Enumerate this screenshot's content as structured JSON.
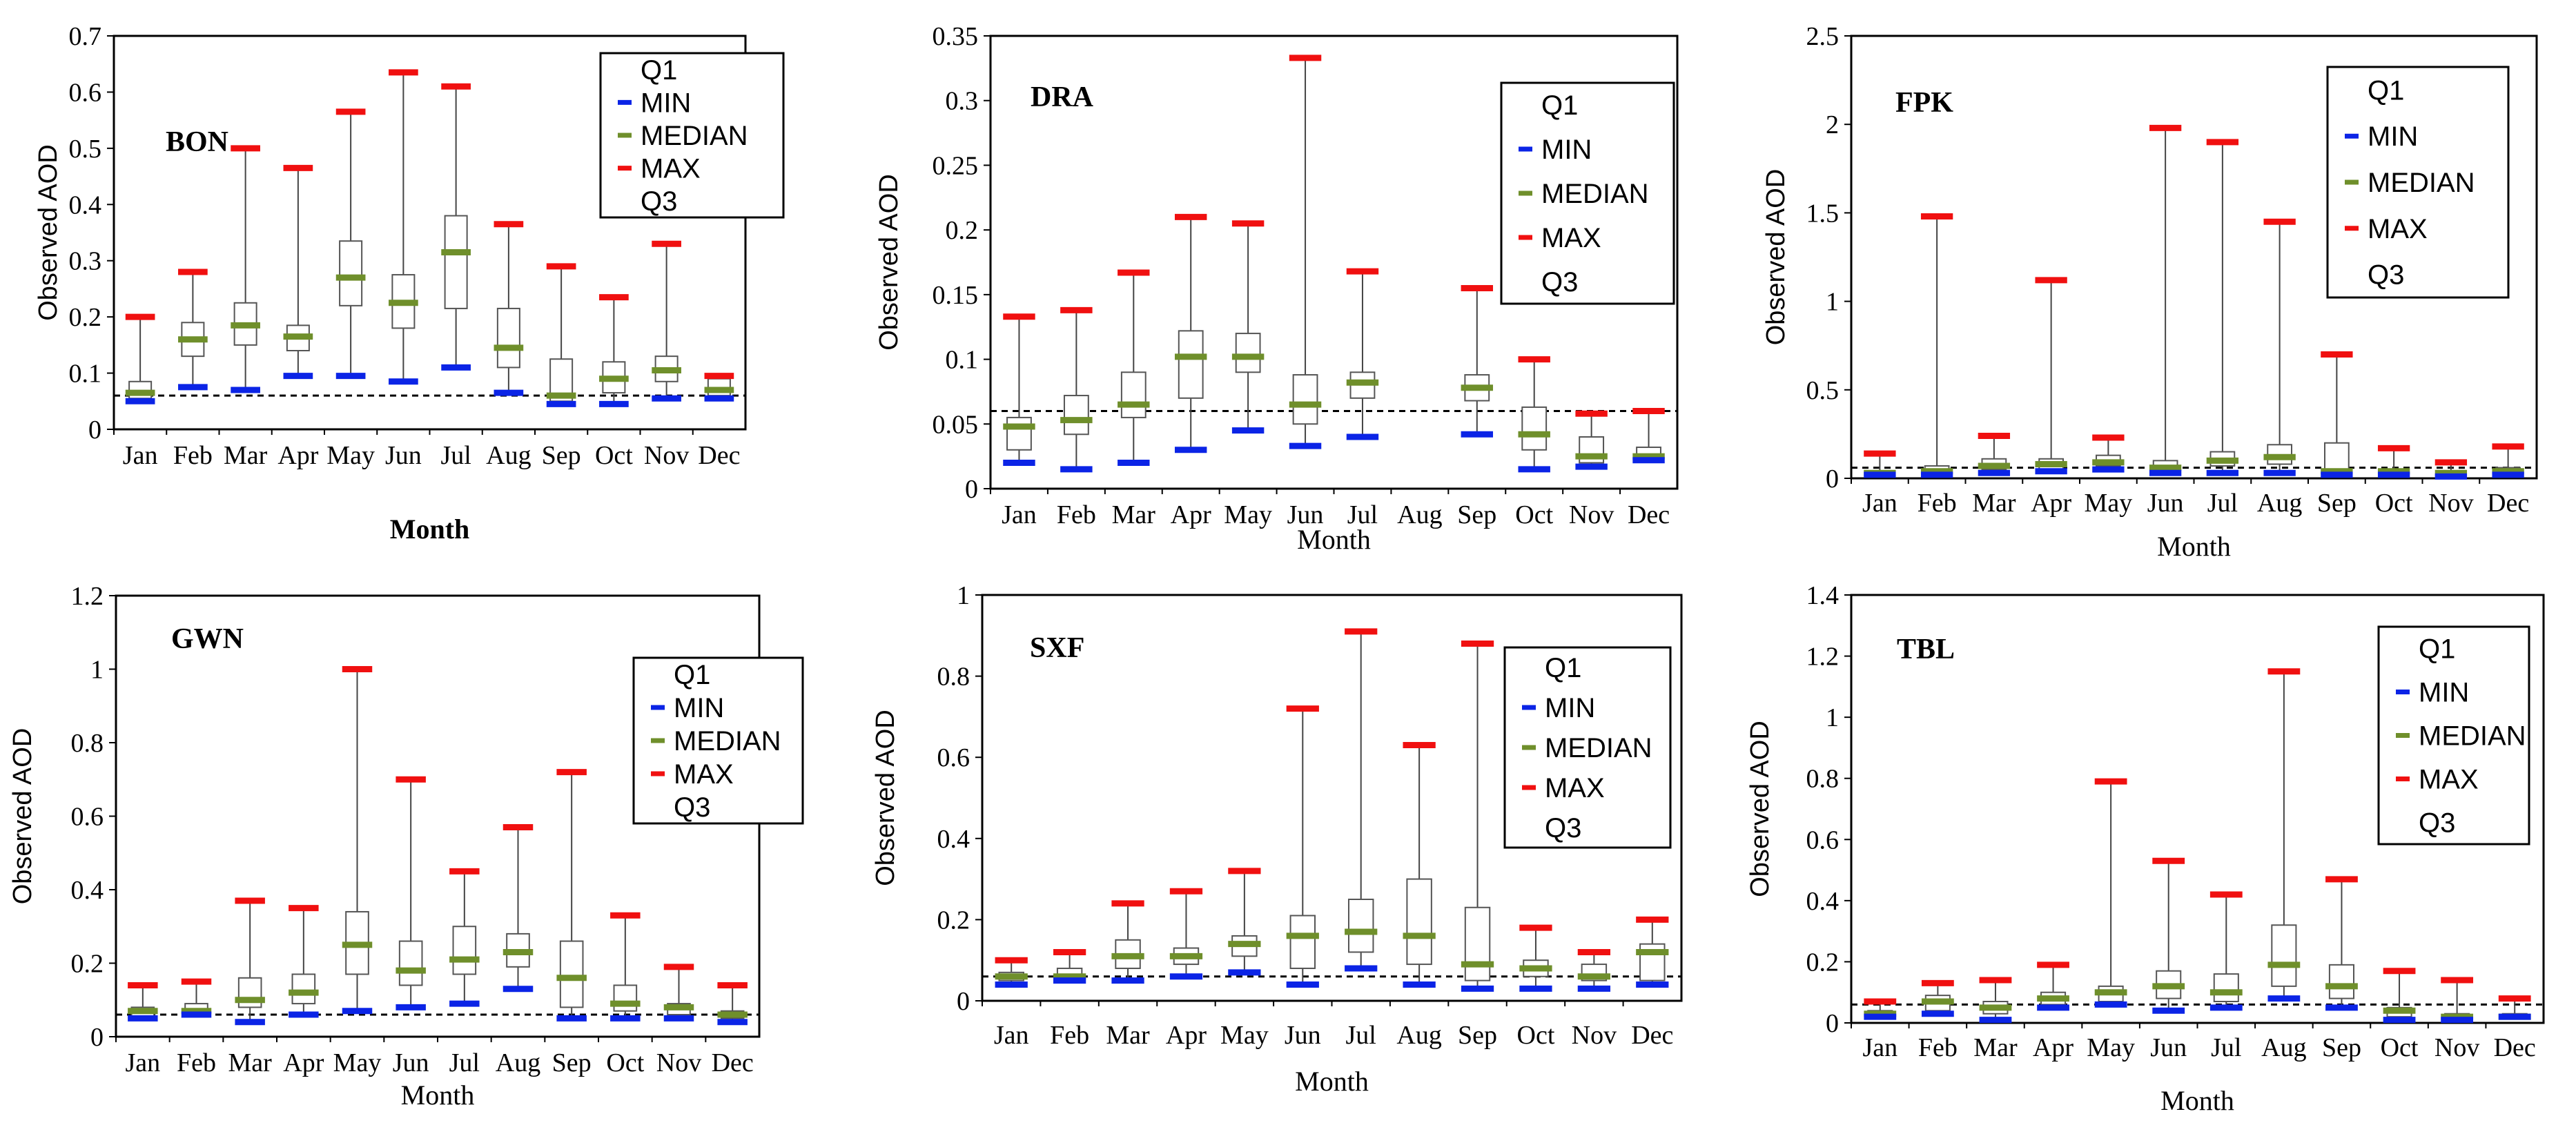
{
  "colors": {
    "min": "#0b24e6",
    "median": "#6f8f2b",
    "max": "#f01010",
    "box": "#000000"
  },
  "chart_data": [
    {
      "type": "boxplot",
      "title": "BON",
      "xlabel": "Month",
      "ylabel": "Observed AOD",
      "ylim": [
        0,
        0.7
      ],
      "yticks": [
        0,
        0.1,
        0.2,
        0.3,
        0.4,
        0.5,
        0.6,
        0.7
      ],
      "tick_labels": [
        "0",
        "0.1",
        "0.2",
        "0.3",
        "0.4",
        "0.5",
        "0.6",
        "0.7"
      ],
      "reference_line": 0.06,
      "categories": [
        "Jan",
        "Feb",
        "Mar",
        "Apr",
        "May",
        "Jun",
        "Jul",
        "Aug",
        "Sep",
        "Oct",
        "Nov",
        "Dec"
      ],
      "min": [
        0.05,
        0.075,
        0.07,
        0.095,
        0.095,
        0.085,
        0.11,
        0.065,
        0.045,
        0.045,
        0.055,
        0.055
      ],
      "q1": [
        0.055,
        0.13,
        0.15,
        0.14,
        0.22,
        0.18,
        0.215,
        0.11,
        0.05,
        0.065,
        0.085,
        0.06
      ],
      "median": [
        0.065,
        0.16,
        0.185,
        0.165,
        0.27,
        0.225,
        0.315,
        0.145,
        0.06,
        0.09,
        0.105,
        0.07
      ],
      "q3": [
        0.085,
        0.19,
        0.225,
        0.185,
        0.335,
        0.275,
        0.38,
        0.215,
        0.125,
        0.12,
        0.13,
        0.09
      ],
      "max": [
        0.2,
        0.28,
        0.5,
        0.465,
        0.565,
        0.635,
        0.61,
        0.365,
        0.29,
        0.235,
        0.33,
        0.095
      ],
      "legend": [
        "Q1",
        "MIN",
        "MEDIAN",
        "MAX",
        "Q3"
      ],
      "legend_position": "top-right"
    },
    {
      "type": "boxplot",
      "title": "DRA",
      "xlabel": "Month",
      "ylabel": "Observed AOD",
      "ylim": [
        0,
        0.35
      ],
      "yticks": [
        0,
        0.05,
        0.1,
        0.15,
        0.2,
        0.25,
        0.3,
        0.35
      ],
      "tick_labels": [
        "0",
        "0.05",
        "0.1",
        "0.15",
        "0.2",
        "0.25",
        "0.3",
        "0.35"
      ],
      "reference_line": 0.06,
      "categories": [
        "Jan",
        "Feb",
        "Mar",
        "Apr",
        "May",
        "Jun",
        "Jul",
        "Aug",
        "Sep",
        "Oct",
        "Nov",
        "Dec"
      ],
      "min": [
        0.02,
        0.015,
        0.02,
        0.03,
        0.045,
        0.033,
        0.04,
        null,
        0.042,
        0.015,
        0.017,
        0.022
      ],
      "q1": [
        0.03,
        0.042,
        0.055,
        0.07,
        0.09,
        0.05,
        0.07,
        null,
        0.068,
        0.03,
        0.02,
        0.022
      ],
      "median": [
        0.048,
        0.053,
        0.065,
        0.102,
        0.102,
        0.065,
        0.082,
        null,
        0.078,
        0.042,
        0.025,
        0.025
      ],
      "q3": [
        0.055,
        0.072,
        0.09,
        0.122,
        0.12,
        0.088,
        0.09,
        null,
        0.088,
        0.063,
        0.04,
        0.032
      ],
      "max": [
        0.133,
        0.138,
        0.167,
        0.21,
        0.205,
        0.333,
        0.168,
        null,
        0.155,
        0.1,
        0.058,
        0.06
      ],
      "legend": [
        "Q1",
        "MIN",
        "MEDIAN",
        "MAX",
        "Q3"
      ],
      "legend_position": "top-right"
    },
    {
      "type": "boxplot",
      "title": "FPK",
      "xlabel": "Month",
      "ylabel": "Observed AOD",
      "ylim": [
        0,
        2.5
      ],
      "yticks": [
        0,
        0.5,
        1,
        1.5,
        2,
        2.5
      ],
      "tick_labels": [
        "0",
        "0.5",
        "1",
        "1.5",
        "2",
        "2.5"
      ],
      "reference_line": 0.06,
      "categories": [
        "Jan",
        "Feb",
        "Mar",
        "Apr",
        "May",
        "Jun",
        "Jul",
        "Aug",
        "Sep",
        "Oct",
        "Nov",
        "Dec"
      ],
      "min": [
        0.02,
        0.02,
        0.03,
        0.04,
        0.05,
        0.03,
        0.03,
        0.03,
        0.02,
        0.02,
        0.01,
        0.02
      ],
      "q1": [
        0.02,
        0.03,
        0.05,
        0.05,
        0.07,
        0.04,
        0.07,
        0.08,
        0.03,
        0.03,
        0.02,
        0.03
      ],
      "median": [
        0.03,
        0.04,
        0.07,
        0.08,
        0.09,
        0.06,
        0.1,
        0.12,
        0.04,
        0.04,
        0.03,
        0.04
      ],
      "q3": [
        0.04,
        0.07,
        0.11,
        0.11,
        0.13,
        0.1,
        0.15,
        0.19,
        0.2,
        0.05,
        0.04,
        0.06
      ],
      "max": [
        0.14,
        1.48,
        0.24,
        1.12,
        0.23,
        1.98,
        1.9,
        1.45,
        0.7,
        0.17,
        0.09,
        0.18
      ],
      "legend": [
        "Q1",
        "MIN",
        "MEDIAN",
        "MAX",
        "Q3"
      ],
      "legend_position": "top-right"
    },
    {
      "type": "boxplot",
      "title": "GWN",
      "xlabel": "Month",
      "ylabel": "Observed AOD",
      "ylim": [
        0,
        1.2
      ],
      "yticks": [
        0,
        0.2,
        0.4,
        0.6,
        0.8,
        1,
        1.2
      ],
      "tick_labels": [
        "0",
        "0.2",
        "0.4",
        "0.6",
        "0.8",
        "1",
        "1.2"
      ],
      "reference_line": 0.06,
      "categories": [
        "Jan",
        "Feb",
        "Mar",
        "Apr",
        "May",
        "Jun",
        "Jul",
        "Aug",
        "Sep",
        "Oct",
        "Nov",
        "Dec"
      ],
      "min": [
        0.05,
        0.06,
        0.04,
        0.06,
        0.07,
        0.08,
        0.09,
        0.13,
        0.05,
        0.05,
        0.05,
        0.04
      ],
      "q1": [
        0.05,
        0.06,
        0.08,
        0.09,
        0.17,
        0.14,
        0.17,
        0.19,
        0.08,
        0.07,
        0.06,
        0.05
      ],
      "median": [
        0.07,
        0.07,
        0.1,
        0.12,
        0.25,
        0.18,
        0.21,
        0.23,
        0.16,
        0.09,
        0.08,
        0.06
      ],
      "q3": [
        0.08,
        0.09,
        0.16,
        0.17,
        0.34,
        0.26,
        0.3,
        0.28,
        0.26,
        0.14,
        0.09,
        0.07
      ],
      "max": [
        0.14,
        0.15,
        0.37,
        0.35,
        1.0,
        0.7,
        0.45,
        0.57,
        0.72,
        0.33,
        0.19,
        0.14
      ],
      "legend": [
        "Q1",
        "MIN",
        "MEDIAN",
        "MAX",
        "Q3"
      ],
      "legend_position": "top-right"
    },
    {
      "type": "boxplot",
      "title": "SXF",
      "xlabel": "Month",
      "ylabel": "Observed AOD",
      "ylim": [
        0,
        1
      ],
      "yticks": [
        0,
        0.2,
        0.4,
        0.6,
        0.8,
        1
      ],
      "tick_labels": [
        "0",
        "0.2",
        "0.4",
        "0.6",
        "0.8",
        "1"
      ],
      "reference_line": 0.06,
      "categories": [
        "Jan",
        "Feb",
        "Mar",
        "Apr",
        "May",
        "Jun",
        "Jul",
        "Aug",
        "Sep",
        "Oct",
        "Nov",
        "Dec"
      ],
      "min": [
        0.04,
        0.05,
        0.05,
        0.06,
        0.07,
        0.04,
        0.08,
        0.04,
        0.03,
        0.03,
        0.03,
        0.04
      ],
      "q1": [
        0.05,
        0.05,
        0.08,
        0.09,
        0.11,
        0.08,
        0.12,
        0.09,
        0.05,
        0.06,
        0.05,
        0.05
      ],
      "median": [
        0.06,
        0.06,
        0.11,
        0.11,
        0.14,
        0.16,
        0.17,
        0.16,
        0.09,
        0.08,
        0.06,
        0.12
      ],
      "q3": [
        0.07,
        0.08,
        0.15,
        0.13,
        0.16,
        0.21,
        0.25,
        0.3,
        0.23,
        0.1,
        0.09,
        0.14
      ],
      "max": [
        0.1,
        0.12,
        0.24,
        0.27,
        0.32,
        0.72,
        0.91,
        0.63,
        0.88,
        0.18,
        0.12,
        0.2
      ],
      "legend": [
        "Q1",
        "MIN",
        "MEDIAN",
        "MAX",
        "Q3"
      ],
      "legend_position": "top-right"
    },
    {
      "type": "boxplot",
      "title": "TBL",
      "xlabel": "Month",
      "ylabel": "Observed AOD",
      "ylim": [
        0,
        1.4
      ],
      "yticks": [
        0,
        0.2,
        0.4,
        0.6,
        0.8,
        1,
        1.2,
        1.4
      ],
      "tick_labels": [
        "0",
        "0.2",
        "0.4",
        "0.6",
        "0.8",
        "1",
        "1.2",
        "1.4"
      ],
      "reference_line": 0.06,
      "categories": [
        "Jan",
        "Feb",
        "Mar",
        "Apr",
        "May",
        "Jun",
        "Jul",
        "Aug",
        "Sep",
        "Oct",
        "Nov",
        "Dec"
      ],
      "min": [
        0.02,
        0.03,
        0.01,
        0.05,
        0.06,
        0.04,
        0.05,
        0.08,
        0.05,
        0.01,
        0.01,
        0.02
      ],
      "q1": [
        0.02,
        0.04,
        0.03,
        0.06,
        0.07,
        0.08,
        0.07,
        0.12,
        0.08,
        0.02,
        0.01,
        0.02
      ],
      "median": [
        0.03,
        0.07,
        0.05,
        0.08,
        0.1,
        0.12,
        0.1,
        0.19,
        0.12,
        0.04,
        0.02,
        0.02
      ],
      "q3": [
        0.04,
        0.09,
        0.07,
        0.1,
        0.12,
        0.17,
        0.16,
        0.32,
        0.19,
        0.05,
        0.03,
        0.03
      ],
      "max": [
        0.07,
        0.13,
        0.14,
        0.19,
        0.79,
        0.53,
        0.42,
        1.15,
        0.47,
        0.17,
        0.14,
        0.08
      ],
      "legend": [
        "Q1",
        "MIN",
        "MEDIAN",
        "MAX",
        "Q3"
      ],
      "legend_position": "top-right"
    }
  ]
}
